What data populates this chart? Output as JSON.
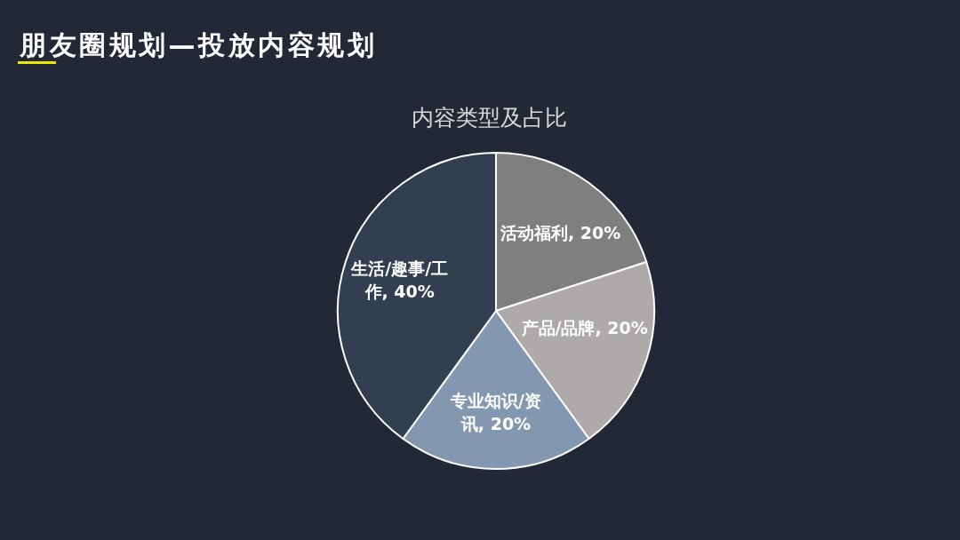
{
  "chart_data": {
    "type": "pie",
    "title": "朋友圈规划—投放内容规划",
    "subtitle": "内容类型及占比",
    "categories": [
      "活动福利",
      "产品/品牌",
      "专业知识/资讯",
      "生活/趣事/工作"
    ],
    "values": [
      20,
      20,
      20,
      40
    ],
    "colors": [
      "#7f7f7f",
      "#aeaaaa",
      "#8497b0",
      "#333f50"
    ],
    "value_labels": [
      "20%",
      "20%",
      "20%",
      "40%"
    ]
  }
}
